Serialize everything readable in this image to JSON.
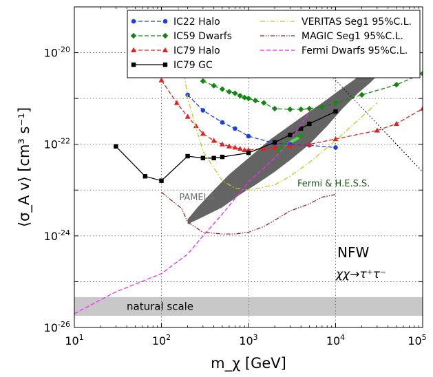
{
  "chart_data": {
    "type": "line",
    "title": "",
    "xlabel": "m_χ [GeV]",
    "ylabel": "⟨σ_A v⟩ [cm³ s⁻¹]",
    "xscale": "log",
    "yscale": "log",
    "xlim": [
      10,
      100000
    ],
    "ylim": [
      1e-26,
      1e-19
    ],
    "x_ticks": [
      {
        "v": 10,
        "b": "10",
        "e": "1"
      },
      {
        "v": 100,
        "b": "10",
        "e": "2"
      },
      {
        "v": 1000,
        "b": "10",
        "e": "3"
      },
      {
        "v": 10000,
        "b": "10",
        "e": "4"
      },
      {
        "v": 100000,
        "b": "10",
        "e": "5"
      }
    ],
    "y_ticks": [
      {
        "v": 1e-26,
        "b": "10",
        "e": "-26"
      },
      {
        "v": 1e-24,
        "b": "10",
        "e": "-24"
      },
      {
        "v": 1e-22,
        "b": "10",
        "e": "-22"
      },
      {
        "v": 1e-20,
        "b": "10",
        "e": "-20"
      }
    ],
    "grid": true,
    "legend_position": "top",
    "series": [
      {
        "name": "IC22 Halo",
        "color": "#1a3fe6",
        "dash": "dashed",
        "marker": "circle",
        "x": [
          200,
          300,
          500,
          700,
          1000,
          2000,
          3000,
          5000,
          10000
        ],
        "y": [
          1.2e-21,
          5.5e-22,
          3e-22,
          2.2e-22,
          1.5e-22,
          1.05e-22,
          1e-22,
          9.5e-23,
          8.5e-23
        ]
      },
      {
        "name": "IC59 Dwarfs",
        "color": "#118811",
        "dash": "dashed",
        "marker": "diamond",
        "x": [
          300,
          400,
          500,
          600,
          700,
          800,
          900,
          1000,
          1200,
          1500,
          2000,
          3000,
          4000,
          5000,
          7000,
          10000,
          20000,
          50000,
          100000
        ],
        "y": [
          2.4e-21,
          1.9e-21,
          1.6e-21,
          1.4e-21,
          1.3e-21,
          1.15e-21,
          1.05e-21,
          1e-21,
          9e-22,
          8e-22,
          6e-22,
          5.8e-22,
          5.8e-22,
          6e-22,
          6.5e-22,
          8e-22,
          1.2e-21,
          2e-21,
          3.5e-21
        ]
      },
      {
        "name": "IC79 Halo",
        "color": "#e62020",
        "dash": "dashed",
        "marker": "triangle",
        "x": [
          100,
          150,
          200,
          250,
          300,
          400,
          500,
          600,
          700,
          800,
          900,
          1000,
          1500,
          2000,
          3000,
          5000,
          10000,
          30000,
          50000,
          100000
        ],
        "y": [
          2.5e-21,
          8e-22,
          4e-22,
          2.5e-22,
          1.7e-22,
          1.2e-22,
          1e-22,
          9e-23,
          8.5e-23,
          8e-23,
          7.5e-23,
          7.5e-23,
          8e-23,
          8.5e-23,
          9e-23,
          1e-22,
          1.3e-22,
          2e-22,
          2.8e-22,
          6e-22
        ]
      },
      {
        "name": "IC79 GC",
        "color": "#000000",
        "dash": "solid",
        "marker": "square",
        "x": [
          30,
          65,
          100,
          200,
          300,
          400,
          500,
          1000,
          2000,
          3000,
          4000,
          5000,
          10000
        ],
        "y": [
          9e-23,
          2e-23,
          1.6e-23,
          5.5e-23,
          5e-23,
          5e-23,
          5.3e-23,
          6.5e-23,
          1.1e-22,
          1.6e-22,
          2.2e-22,
          2.8e-22,
          5.2e-22
        ]
      },
      {
        "name": "VERITAS Seg1 95%C.L.",
        "color": "#c8c81e",
        "dash": "dashdot",
        "marker": "none",
        "x": [
          150,
          170,
          200,
          300,
          500,
          700,
          1000,
          2000,
          3000,
          5000,
          10000,
          20000,
          30000
        ],
        "y": [
          3e-19,
          1e-20,
          1e-21,
          7e-23,
          1.6e-23,
          1.1e-23,
          1e-23,
          1.3e-23,
          2e-23,
          4e-23,
          1.2e-22,
          4e-22,
          8e-22
        ]
      },
      {
        "name": "MAGIC Seg1 95%C.L.",
        "color": "#992222",
        "dash": "dashdotdot",
        "marker": "none",
        "x": [
          100,
          130,
          170,
          200,
          300,
          500,
          700,
          1000,
          1500,
          2000,
          3000,
          5000,
          7000,
          10000
        ],
        "y": [
          9e-24,
          6e-24,
          4e-24,
          2e-24,
          1.2e-24,
          1.1e-24,
          1.1e-24,
          1.2e-24,
          1.6e-24,
          2.2e-24,
          3.5e-24,
          5e-24,
          7e-24,
          8e-24
        ]
      },
      {
        "name": "Fermi Dwarfs 95%C.L.",
        "color": "#ff22ff",
        "dash": "dashed",
        "marker": "none",
        "x": [
          10,
          30,
          100,
          200,
          300,
          500,
          1000,
          2000,
          3000,
          5000
        ],
        "y": [
          2e-26,
          6e-26,
          1.5e-25,
          4e-25,
          1e-24,
          3e-24,
          1.5e-23,
          5e-23,
          1.2e-22,
          5e-22
        ]
      }
    ],
    "regions": [
      {
        "label": "Fermi & H.E.S.S.",
        "color": "#646464",
        "polygon": [
          [
            200,
            1.8e-24
          ],
          [
            300,
            2.6e-24
          ],
          [
            500,
            4.2e-24
          ],
          [
            800,
            8e-24
          ],
          [
            1200,
            1.3e-23
          ],
          [
            2000,
            2.5e-23
          ],
          [
            3000,
            4.5e-23
          ],
          [
            5000,
            1e-22
          ],
          [
            8000,
            2.5e-22
          ],
          [
            12000,
            6e-22
          ],
          [
            18000,
            1.3e-21
          ],
          [
            25000,
            2.2e-21
          ],
          [
            32000,
            3.5e-21
          ],
          [
            35000,
            5.5e-21
          ],
          [
            30000,
            5.6e-21
          ],
          [
            22000,
            4e-21
          ],
          [
            16000,
            2.5e-21
          ],
          [
            11000,
            1.5e-21
          ],
          [
            7000,
            8e-22
          ],
          [
            4500,
            4.5e-22
          ],
          [
            3000,
            2.6e-22
          ],
          [
            1800,
            1.3e-22
          ],
          [
            1000,
            5e-23
          ],
          [
            600,
            2.2e-23
          ],
          [
            380,
            9e-24
          ],
          [
            260,
            4.2e-24
          ],
          [
            200,
            2.3e-24
          ]
        ]
      },
      {
        "label": "",
        "color": "#2a8a2a",
        "polygon": [
          [
            2100,
            6e-23
          ],
          [
            2600,
            8e-23
          ],
          [
            3200,
            1.05e-22
          ],
          [
            3900,
            1.35e-22
          ],
          [
            4500,
            1.55e-22
          ],
          [
            4300,
            1.75e-22
          ],
          [
            3600,
            1.6e-22
          ],
          [
            2900,
            1.3e-22
          ],
          [
            2400,
            1e-22
          ],
          [
            2100,
            7.5e-23
          ]
        ]
      },
      {
        "label": "",
        "color": "#66cc66",
        "polygon": [
          [
            2800,
            9.5e-23
          ],
          [
            3400,
            1.15e-22
          ],
          [
            3900,
            1.35e-22
          ],
          [
            3600,
            1.45e-22
          ],
          [
            3100,
            1.25e-22
          ],
          [
            2800,
            1.05e-22
          ]
        ]
      }
    ],
    "lines": [
      {
        "name": "unitarity",
        "color": "#000000",
        "dash": "dotted",
        "x": [
          6000,
          100000
        ],
        "y": [
          7e-21,
          2.5e-23
        ]
      }
    ],
    "bands": [
      {
        "label": "natural scale",
        "color": "#c8c8c8",
        "y": [
          1.8e-26,
          4.6e-26
        ]
      }
    ],
    "annotations": [
      {
        "text": "PAMELA",
        "color": "#707070",
        "x": 160,
        "y": 6e-24
      },
      {
        "text": "NFW",
        "x": 12000,
        "y": 1.05e-24
      },
      {
        "text": "χχ→τ⁺τ⁻",
        "x": 12000,
        "y": 3.3e-25
      }
    ]
  }
}
